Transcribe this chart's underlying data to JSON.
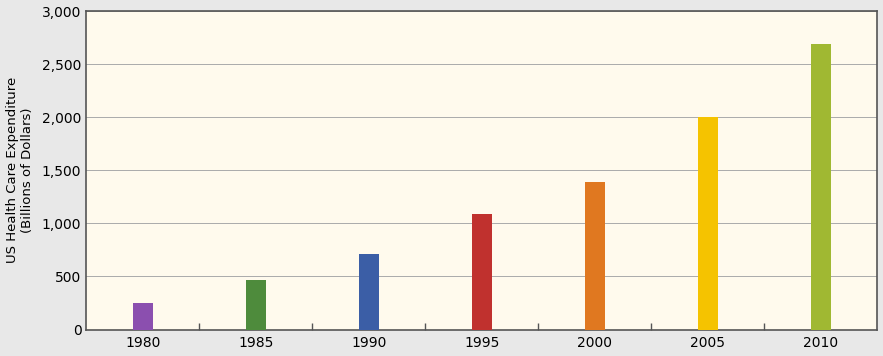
{
  "categories": [
    "1980",
    "1985",
    "1990",
    "1995",
    "2000",
    "2005",
    "2010"
  ],
  "values": [
    250,
    470,
    710,
    1090,
    1390,
    2000,
    2690
  ],
  "bar_colors": [
    "#8B4FAF",
    "#4E8B3C",
    "#3B5EA6",
    "#C0312E",
    "#E07820",
    "#F5C300",
    "#A0B832"
  ],
  "ylabel": "US Health Care Expenditure\n(Billions of Dollars)",
  "ylim": [
    0,
    3000
  ],
  "yticks": [
    0,
    500,
    1000,
    1500,
    2000,
    2500,
    3000
  ],
  "ytick_labels": [
    "0",
    "500",
    "1,000",
    "1,500",
    "2,000",
    "2,500",
    "3,000"
  ],
  "plot_bg_color": "#FFFAED",
  "fig_bg_color": "#E8E8E8",
  "bar_width": 0.18,
  "grid_color": "#AAAAAA",
  "border_color": "#555555",
  "ylabel_fontsize": 9.5,
  "tick_fontsize": 10
}
